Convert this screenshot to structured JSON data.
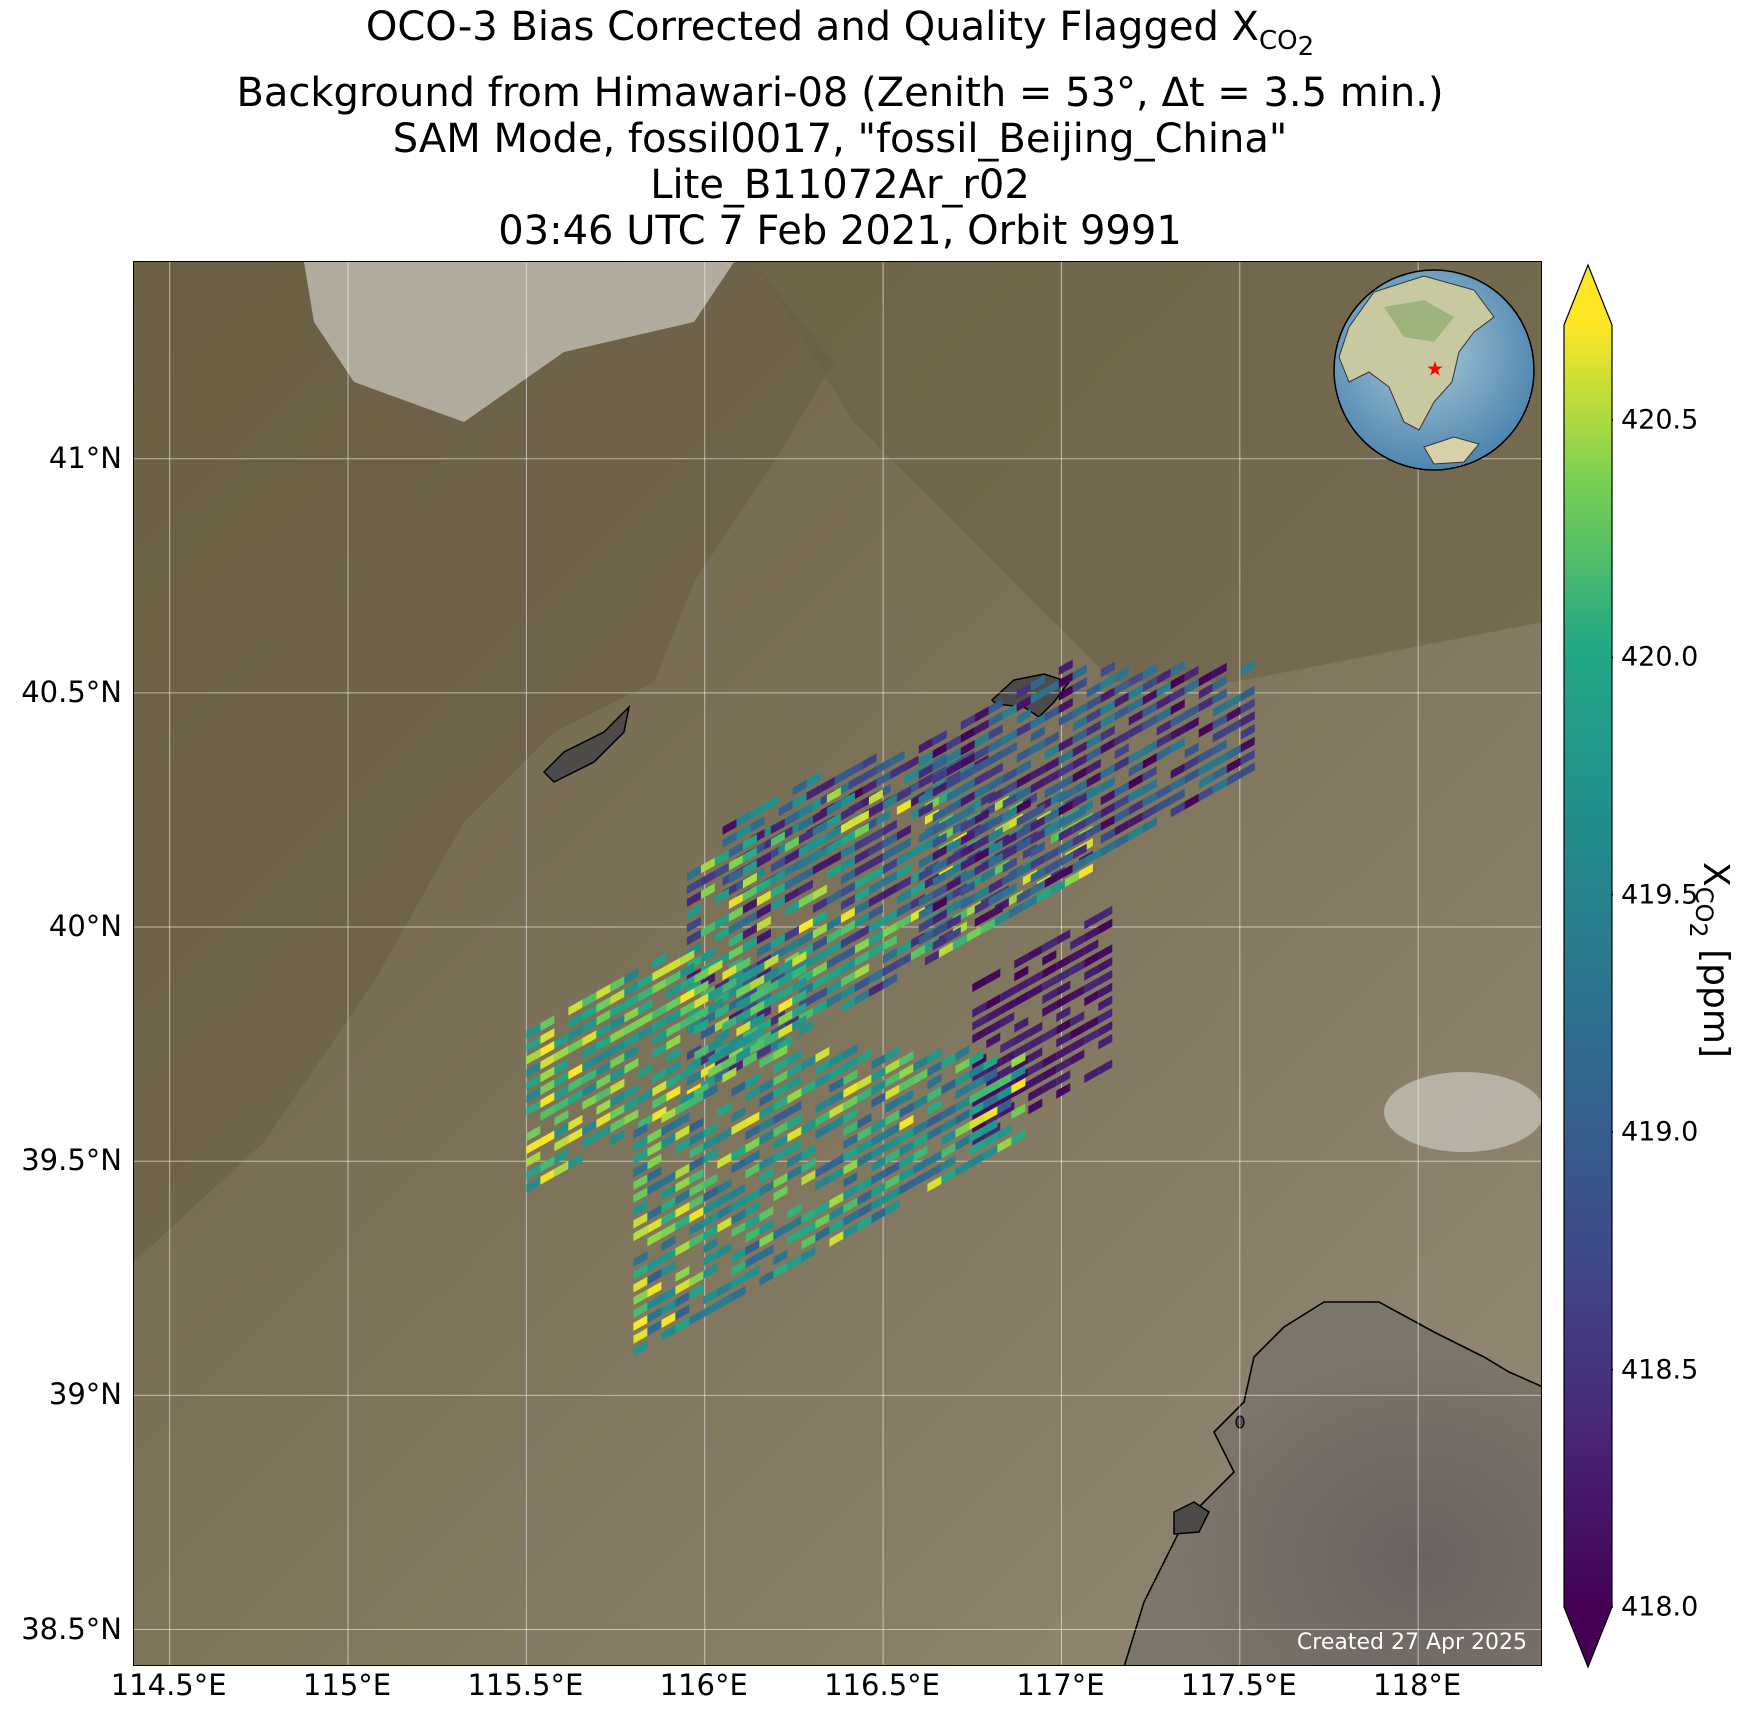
{
  "title": {
    "line1_prefix": "OCO-3 Bias Corrected and Quality Flagged X",
    "line1_sub": "CO",
    "line1_subsub": "2",
    "line2": "Background from Himawari-08 (Zenith = 53°, Δt =  3.5 min.)",
    "line3": "SAM Mode, fossil0017, \"fossil_Beijing_China\"",
    "line4": "Lite_B11072Ar_r02",
    "line5": "03:46 UTC 7 Feb 2021, Orbit 9991"
  },
  "map": {
    "lon_range": [
      114.4,
      118.35
    ],
    "lat_range": [
      38.42,
      41.42
    ],
    "lon_ticks": [
      114.5,
      115,
      115.5,
      116,
      116.5,
      117,
      117.5,
      118
    ],
    "lon_tick_labels": [
      "114.5°E",
      "115°E",
      "115.5°E",
      "116°E",
      "116.5°E",
      "117°E",
      "117.5°E",
      "118°E"
    ],
    "lat_ticks": [
      38.5,
      39,
      39.5,
      40,
      40.5,
      41
    ],
    "lat_tick_labels": [
      "38.5°N",
      "39°N",
      "39.5°N",
      "40°N",
      "40.5°N",
      "41°N"
    ],
    "grid": true,
    "credit": "Created 27 Apr 2025",
    "inset_globe": "globe centered on East Asia with red star at Beijing",
    "target_marker": "red-star"
  },
  "colorbar": {
    "colormap": "viridis",
    "min": 418.0,
    "max": 420.7,
    "ticks": [
      418.0,
      418.5,
      419.0,
      419.5,
      420.0,
      420.5
    ],
    "tick_labels": [
      "418.0",
      "418.5",
      "419.0",
      "419.5",
      "420.0",
      "420.5"
    ],
    "extend": "both",
    "label_prefix": "X",
    "label_sub": "CO",
    "label_subsub": "2",
    "label_suffix": " [ppm]"
  },
  "chart_data": {
    "type": "heatmap",
    "variable": "XCO2",
    "units": "ppm",
    "swaths": [
      {
        "lon": [
          116.05,
          116.85
        ],
        "lat": [
          40.05,
          40.28
        ],
        "values_range": [
          418.0,
          419.8
        ]
      },
      {
        "lon": [
          115.95,
          117.1
        ],
        "lat": [
          39.65,
          40.2
        ],
        "values_range": [
          418.2,
          420.7
        ]
      },
      {
        "lon": [
          116.6,
          117.55
        ],
        "lat": [
          39.95,
          40.47
        ],
        "values_range": [
          418.0,
          419.5
        ]
      },
      {
        "lon": [
          116.75,
          117.15
        ],
        "lat": [
          39.55,
          39.95
        ],
        "values_range": [
          418.0,
          418.4
        ]
      },
      {
        "lon": [
          115.5,
          116.3
        ],
        "lat": [
          39.45,
          39.85
        ],
        "values_range": [
          419.5,
          420.7
        ]
      },
      {
        "lon": [
          115.8,
          116.9
        ],
        "lat": [
          39.1,
          39.65
        ],
        "values_range": [
          419.0,
          420.7
        ]
      }
    ]
  },
  "colors": {
    "viridis_low": "#440154",
    "viridis_mid": "#21918c",
    "viridis_high": "#fde725",
    "background_land": "#8a7e63",
    "sea": "#6e6660",
    "marker": "#ff0000"
  }
}
